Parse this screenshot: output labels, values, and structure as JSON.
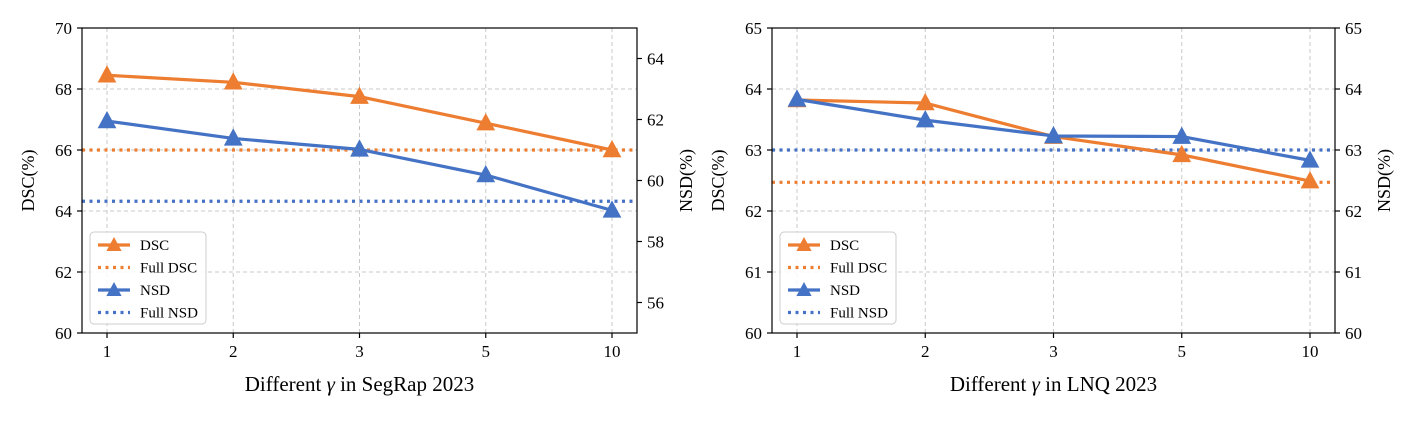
{
  "chart_data": [
    {
      "type": "line",
      "title": "",
      "xlabel_prefix": "Different ",
      "xlabel_symbol": "γ",
      "xlabel_suffix": " in SegRap 2023",
      "categories": [
        "1",
        "2",
        "3",
        "5",
        "10"
      ],
      "ylabel_left": "DSC(%)",
      "ylabel_right": "NSD(%)",
      "ylim_left": [
        60,
        70
      ],
      "ylim_right": [
        55,
        65
      ],
      "yticks_left": [
        "60",
        "62",
        "64",
        "66",
        "68",
        "70"
      ],
      "yticks_right": [
        "56",
        "58",
        "60",
        "62",
        "64"
      ],
      "series": [
        {
          "name": "DSC",
          "axis": "left",
          "style": "line-marker",
          "values": [
            68.45,
            68.22,
            67.75,
            66.88,
            66.0
          ]
        },
        {
          "name": "Full DSC",
          "axis": "left",
          "style": "dotted",
          "value": 66.0
        },
        {
          "name": "NSD",
          "axis": "right",
          "style": "line-marker",
          "values": [
            61.95,
            61.38,
            61.02,
            60.18,
            59.02
          ]
        },
        {
          "name": "Full NSD",
          "axis": "right",
          "style": "dotted",
          "value": 59.32
        }
      ],
      "legend": "lower-left",
      "grid": true
    },
    {
      "type": "line",
      "title": "",
      "xlabel_prefix": "Different ",
      "xlabel_symbol": "γ",
      "xlabel_suffix": " in LNQ 2023",
      "categories": [
        "1",
        "2",
        "3",
        "5",
        "10"
      ],
      "ylabel_left": "DSC(%)",
      "ylabel_right": "NSD(%)",
      "ylim_left": [
        60,
        65
      ],
      "ylim_right": [
        60,
        65
      ],
      "yticks_left": [
        "60",
        "61",
        "62",
        "63",
        "64",
        "65"
      ],
      "yticks_right": [
        "60",
        "61",
        "62",
        "63",
        "64",
        "65"
      ],
      "series": [
        {
          "name": "DSC",
          "axis": "left",
          "style": "line-marker",
          "values": [
            63.82,
            63.77,
            63.22,
            62.92,
            62.49
          ]
        },
        {
          "name": "Full DSC",
          "axis": "left",
          "style": "dotted",
          "value": 62.47
        },
        {
          "name": "NSD",
          "axis": "right",
          "style": "line-marker",
          "values": [
            63.83,
            63.49,
            63.23,
            63.22,
            62.83
          ]
        },
        {
          "name": "Full NSD",
          "axis": "right",
          "style": "dotted",
          "value": 63.0
        }
      ],
      "legend": "lower-left",
      "grid": true
    }
  ],
  "colors": {
    "dsc": "#ed7d31",
    "nsd": "#4472c4"
  }
}
